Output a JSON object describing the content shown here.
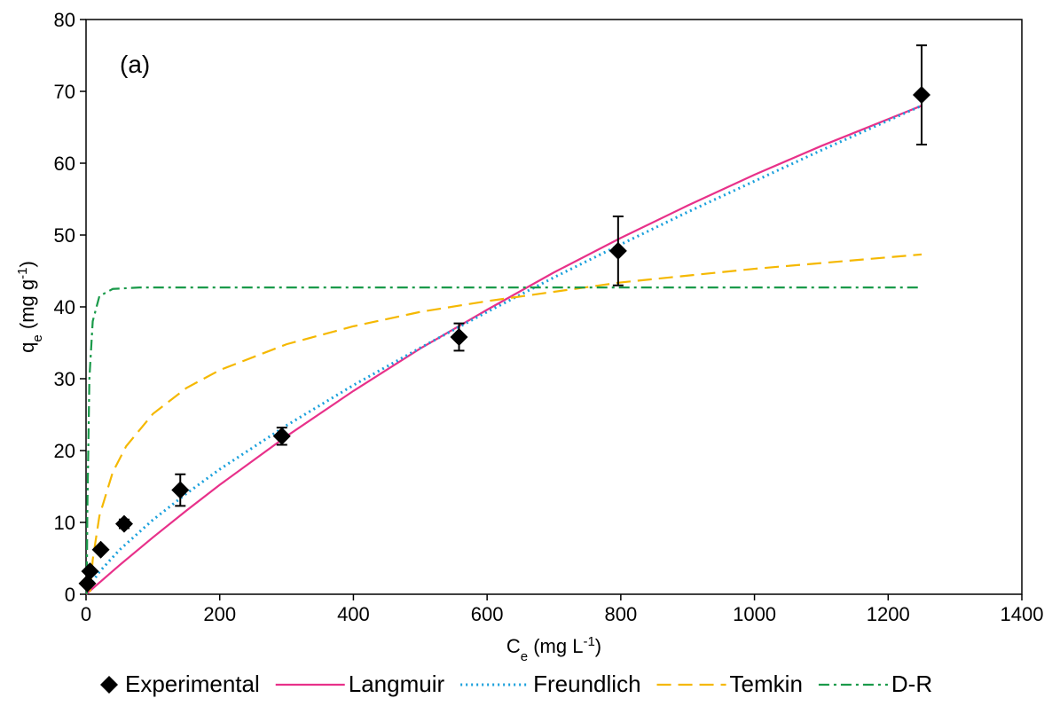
{
  "chart_data": {
    "type": "line",
    "annotation": "(a)",
    "xlabel": [
      {
        "text": "C"
      },
      {
        "text": "e",
        "shift": "sub"
      },
      {
        "text": " (mg L"
      },
      {
        "text": "-1",
        "shift": "sup"
      },
      {
        "text": ")"
      }
    ],
    "ylabel": [
      {
        "text": "q"
      },
      {
        "text": "e",
        "shift": "sub"
      },
      {
        "text": " (mg g"
      },
      {
        "text": "-1",
        "shift": "sup"
      },
      {
        "text": ")"
      }
    ],
    "xlim": [
      0,
      1400
    ],
    "xticks": [
      0,
      200,
      400,
      600,
      800,
      1000,
      1200,
      1400
    ],
    "ylim": [
      0,
      80
    ],
    "yticks": [
      0,
      10,
      20,
      30,
      40,
      50,
      60,
      70,
      80
    ],
    "grid": false,
    "legend": "bottom",
    "series": [
      {
        "name": "Experimental",
        "type": "scatter",
        "color": "#000000",
        "x": [
          2,
          6,
          22,
          57,
          141,
          293,
          558,
          796,
          1250
        ],
        "values": [
          1.5,
          3.2,
          6.2,
          9.8,
          14.5,
          22.0,
          35.8,
          47.8,
          69.5
        ],
        "errors": [
          null,
          null,
          null,
          0.6,
          2.2,
          1.2,
          1.9,
          4.8,
          6.9
        ]
      },
      {
        "name": "Langmuir",
        "type": "line",
        "style": "solid",
        "color": "#e8318a",
        "x": [
          0,
          50,
          100,
          150,
          200,
          300,
          400,
          500,
          600,
          700,
          800,
          900,
          1000,
          1100,
          1250
        ],
        "values": [
          0,
          4.04,
          7.91,
          11.64,
          15.23,
          22.0,
          28.3,
          34.2,
          39.6,
          44.8,
          49.6,
          54.1,
          58.4,
          62.4,
          68.0
        ]
      },
      {
        "name": "Freundlich",
        "type": "line",
        "style": "dotted",
        "color": "#1aa0dc",
        "x": [
          5,
          20,
          50,
          100,
          150,
          200,
          300,
          400,
          500,
          600,
          700,
          800,
          900,
          1000,
          1100,
          1250
        ],
        "values": [
          1.11,
          3.12,
          6.17,
          10.35,
          14.0,
          17.4,
          23.5,
          29.1,
          34.3,
          39.3,
          44.1,
          48.7,
          53.2,
          57.5,
          61.8,
          68.0
        ]
      },
      {
        "name": "Temkin",
        "type": "line",
        "style": "dashed",
        "color": "#f5b800",
        "x": [
          6,
          10,
          20,
          40,
          60,
          100,
          150,
          200,
          300,
          400,
          500,
          600,
          800,
          1000,
          1250
        ],
        "values": [
          0.33,
          4.8,
          10.9,
          17.0,
          20.6,
          25.1,
          28.7,
          31.2,
          34.8,
          37.3,
          39.3,
          40.8,
          43.4,
          45.3,
          47.3
        ]
      },
      {
        "name": "D-R",
        "type": "line",
        "style": "dashdot",
        "color": "#1a9a4a",
        "x": [
          1,
          2,
          5,
          10,
          20,
          40,
          80,
          1250
        ],
        "values": [
          0,
          12,
          30,
          38,
          41.5,
          42.5,
          42.7,
          42.7
        ]
      }
    ]
  }
}
